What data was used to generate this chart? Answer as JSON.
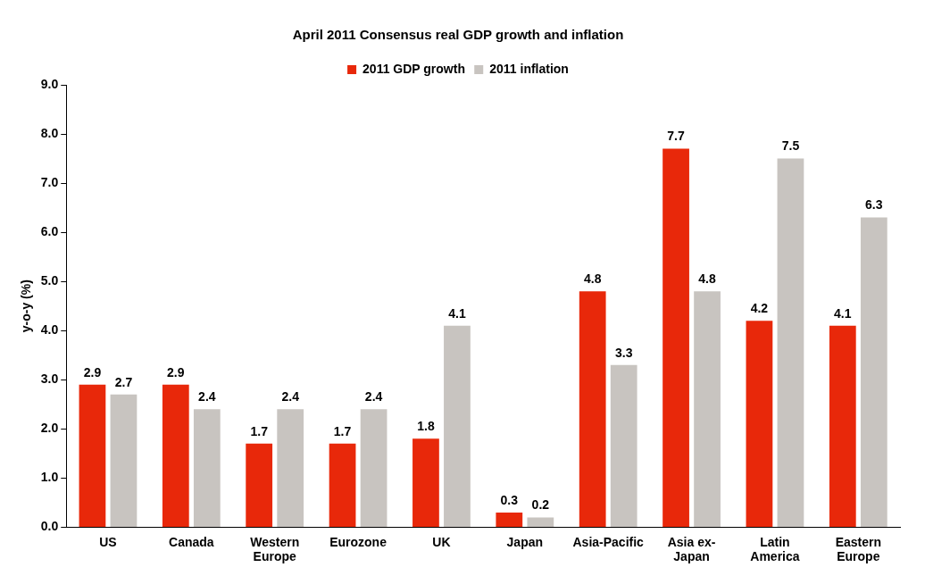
{
  "chart_data": {
    "type": "bar",
    "title": "April 2011 Consensus real GDP growth and inflation",
    "ylabel": "y-o-y (%)",
    "categories": [
      "US",
      "Canada",
      "Western Europe",
      "Eurozone",
      "UK",
      "Japan",
      "Asia-Pacific",
      "Asia ex-Japan",
      "Latin America",
      "Eastern Europe"
    ],
    "series": [
      {
        "name": "2011 GDP growth",
        "color": "#e8280a",
        "values": [
          2.9,
          2.9,
          1.7,
          1.7,
          1.8,
          0.3,
          4.8,
          7.7,
          4.2,
          4.1
        ]
      },
      {
        "name": "2011 inflation",
        "color": "#c8c4c0",
        "values": [
          2.7,
          2.4,
          2.4,
          2.4,
          4.1,
          0.2,
          3.3,
          4.8,
          7.5,
          6.3
        ]
      }
    ],
    "ylim": [
      0,
      9
    ],
    "yticks": [
      {
        "value": 0,
        "label": "0.0"
      },
      {
        "value": 1,
        "label": "1.0"
      },
      {
        "value": 2,
        "label": "2.0"
      },
      {
        "value": 3,
        "label": "3.0"
      },
      {
        "value": 4,
        "label": "4.0"
      },
      {
        "value": 5,
        "label": "5.0"
      },
      {
        "value": 6,
        "label": "6.0"
      },
      {
        "value": 7,
        "label": "7.0"
      },
      {
        "value": 8,
        "label": "8.0"
      },
      {
        "value": 9,
        "label": "9.0"
      }
    ],
    "grid": false,
    "legend": "top",
    "data_labels": true
  }
}
